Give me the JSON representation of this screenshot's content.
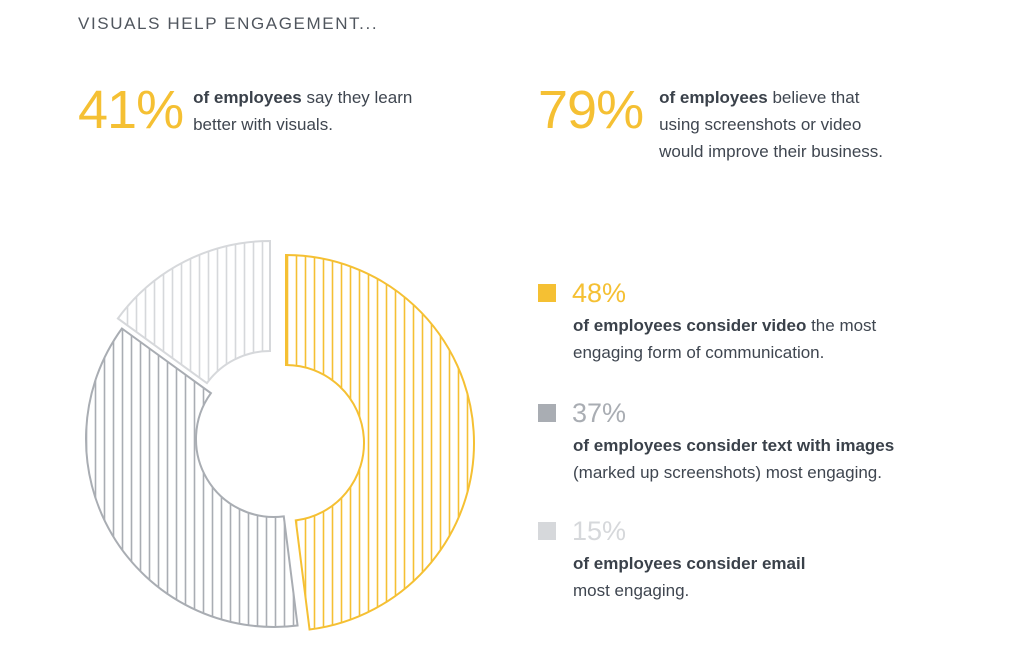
{
  "heading": "VISUALS HELP ENGAGEMENT...",
  "stats": [
    {
      "value": "41%",
      "bold": "of employees",
      "rest_line1": " say they learn",
      "line2": "better with visuals.",
      "line3": ""
    },
    {
      "value": "79%",
      "bold": "of employees",
      "rest_line1": " believe that",
      "line2": "using screenshots or video",
      "line3": "would improve their business."
    }
  ],
  "legend": [
    {
      "pct": "48%",
      "bold": "of employees consider video",
      "rest": " the most",
      "line2": "engaging form of communication."
    },
    {
      "pct": "37%",
      "bold": "of employees consider text with images",
      "rest": "",
      "line2": "(marked up screenshots) most engaging."
    },
    {
      "pct": "15%",
      "bold": "of employees consider email",
      "rest": "",
      "line2": "most engaging."
    }
  ],
  "colors": {
    "video": "#f5c033",
    "text_images": "#a9adb3",
    "email": "#d6d8db"
  },
  "chart_data": {
    "type": "pie",
    "variant": "donut",
    "categories": [
      "video",
      "text with images",
      "email"
    ],
    "values": [
      48,
      37,
      15
    ],
    "title": "",
    "legend": "right"
  }
}
